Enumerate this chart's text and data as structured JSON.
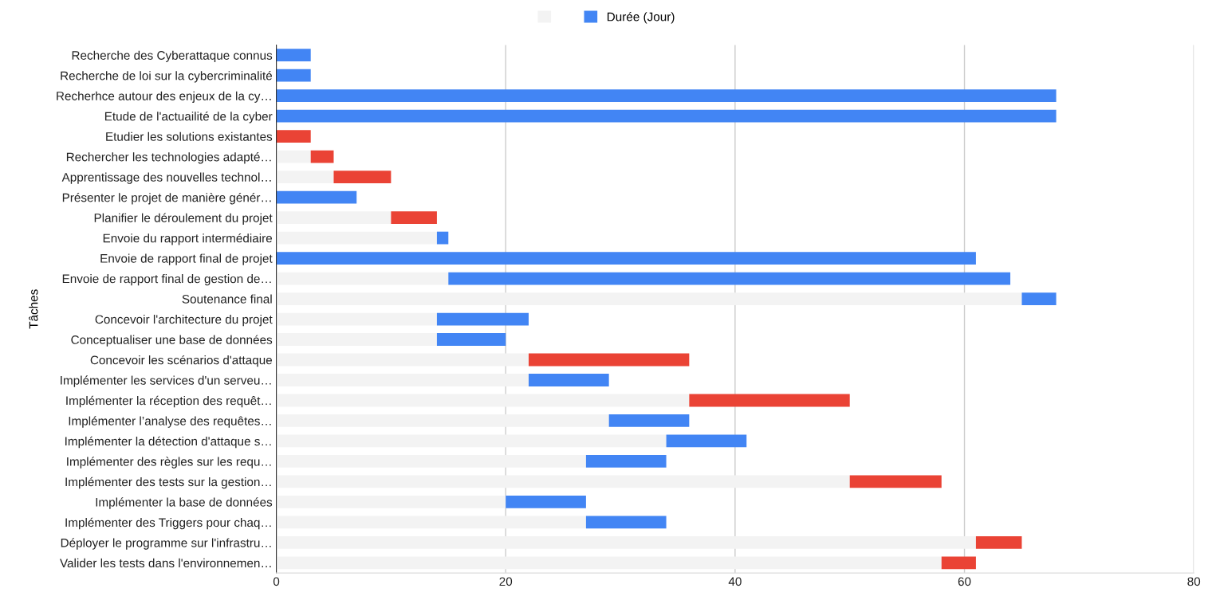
{
  "chart_data": {
    "type": "bar",
    "orientation": "horizontal",
    "stacked": true,
    "ylabel": "Tâches",
    "categories": [
      "Recherche des Cyberattaque connus",
      "Recherche de loi sur la cybercriminalité",
      "Recherhce autour des enjeux de la cy…",
      "Etude de l'actuailité de la cyber",
      "Etudier les solutions existantes",
      "Rechercher les technologies adapté…",
      "Apprentissage des nouvelles technol…",
      "Présenter le projet de manière génér…",
      "Planifier le déroulement du projet",
      "Envoie du rapport intermédiaire",
      "Envoie de rapport final de projet",
      "Envoie de rapport final de gestion de…",
      "Soutenance final",
      "Concevoir l'architecture du projet",
      "Conceptualiser une base de données",
      "Concevoir les scénarios d'attaque",
      "Implémenter les services d'un serveu…",
      "Implémenter la réception des requêt…",
      "Implémenter l’analyse des requêtes…",
      "Implémenter la détection d'attaque s…",
      "Implémenter des règles sur les requ…",
      "Implémenter des tests sur la gestion…",
      "Implémenter la base de données",
      "Implémenter des Triggers pour chaq…",
      "Déployer le programme sur l'infrastru…",
      "Valider les tests dans l'environnemen…"
    ],
    "series": [
      {
        "color": "#f3f3f3",
        "values": [
          0,
          0,
          0,
          0,
          0,
          3,
          5,
          0,
          10,
          14,
          0,
          15,
          65,
          14,
          14,
          22,
          22,
          36,
          29,
          34,
          27,
          50,
          20,
          27,
          61,
          58
        ]
      },
      {
        "name": "Durée (Jour)",
        "color": "#4285f4",
        "values": [
          3,
          3,
          68,
          68,
          3,
          2,
          5,
          7,
          4,
          1,
          61,
          49,
          3,
          8,
          6,
          14,
          7,
          14,
          7,
          7,
          7,
          8,
          7,
          7,
          4,
          3
        ],
        "colors": [
          "#4285f4",
          "#4285f4",
          "#4285f4",
          "#4285f4",
          "#ea4335",
          "#ea4335",
          "#ea4335",
          "#4285f4",
          "#ea4335",
          "#4285f4",
          "#4285f4",
          "#4285f4",
          "#4285f4",
          "#4285f4",
          "#4285f4",
          "#ea4335",
          "#4285f4",
          "#ea4335",
          "#4285f4",
          "#4285f4",
          "#4285f4",
          "#ea4335",
          "#4285f4",
          "#4285f4",
          "#ea4335",
          "#ea4335"
        ]
      }
    ],
    "xlim": [
      0,
      80
    ],
    "xticks": [
      0,
      20,
      40,
      60,
      80
    ],
    "grid": "x",
    "legend": "top"
  }
}
